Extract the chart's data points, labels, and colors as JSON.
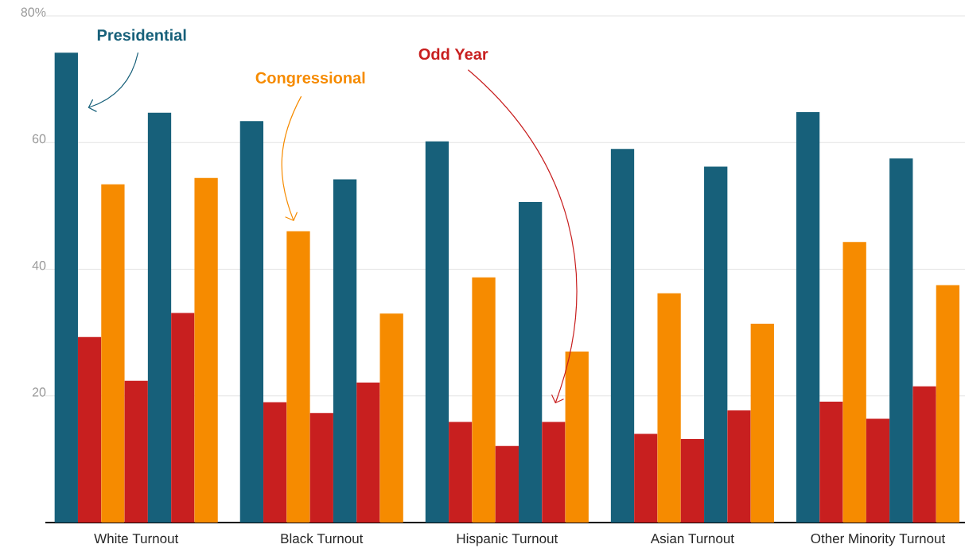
{
  "chart_data": {
    "type": "bar",
    "categories": [
      "White Turnout",
      "Black Turnout",
      "Hispanic Turnout",
      "Asian Turnout",
      "Other Minority Turnout"
    ],
    "series": [
      {
        "color": "#17607a",
        "values": [
          74.2,
          63.4,
          60.2,
          59.0,
          64.8
        ]
      },
      {
        "color": "#c81f1f",
        "values": [
          29.3,
          19.0,
          15.9,
          14.0,
          19.1
        ]
      },
      {
        "color": "#f68b00",
        "values": [
          53.4,
          46.0,
          38.7,
          36.2,
          44.3
        ]
      },
      {
        "color": "#c81f1f",
        "values": [
          22.4,
          17.3,
          12.1,
          13.2,
          16.4
        ]
      },
      {
        "color": "#17607a",
        "values": [
          64.7,
          54.2,
          50.6,
          56.2,
          57.5
        ]
      },
      {
        "color": "#c81f1f",
        "values": [
          33.1,
          22.1,
          15.9,
          17.7,
          21.5
        ]
      },
      {
        "color": "#f68b00",
        "values": [
          54.4,
          33.0,
          27.0,
          31.4,
          37.5
        ]
      }
    ],
    "ylim": [
      0,
      80
    ],
    "yticks": [
      20,
      40,
      60,
      {
        "value": 80,
        "label": "80%"
      }
    ],
    "grid": "y",
    "annotations": [
      "Presidential",
      "Congressional",
      "Odd Year"
    ]
  }
}
